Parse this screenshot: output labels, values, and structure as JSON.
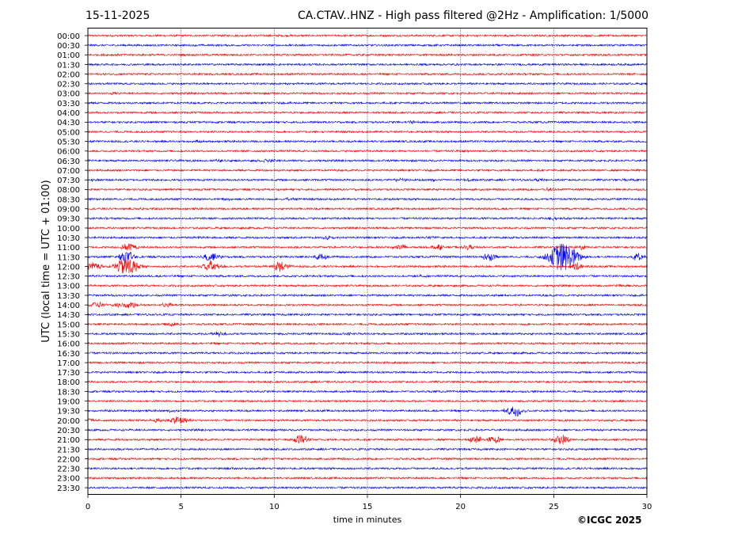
{
  "header": {
    "date": "15-11-2025",
    "title": "CA.CTAV..HNZ - High pass filtered @2Hz - Amplification: 1/5000"
  },
  "footer": {
    "credit": "©ICGC 2025"
  },
  "colors": {
    "even_trace": "#ff0000",
    "odd_trace": "#0000ff",
    "gridline": "#00008b",
    "frame": "#000000"
  },
  "chart_data": {
    "type": "line",
    "chart_kind": "helicorder",
    "title": "CA.CTAV..HNZ - High pass filtered @2Hz - Amplification: 1/5000",
    "date": "15-11-2025",
    "xlabel": "time in minutes",
    "ylabel": "UTC (local time = UTC + 01:00)",
    "xlim": [
      0,
      30
    ],
    "x_ticks": [
      0,
      5,
      10,
      15,
      20,
      25,
      30
    ],
    "vertical_gridlines_at": [
      5,
      10,
      15,
      20,
      25
    ],
    "row_labels": [
      "00:00",
      "00:30",
      "01:00",
      "01:30",
      "02:00",
      "02:30",
      "03:00",
      "03:30",
      "04:00",
      "04:30",
      "05:00",
      "05:30",
      "06:00",
      "06:30",
      "07:00",
      "07:30",
      "08:00",
      "08:30",
      "09:00",
      "09:30",
      "10:00",
      "10:30",
      "11:00",
      "11:30",
      "12:00",
      "12:30",
      "13:00",
      "13:30",
      "14:00",
      "14:30",
      "15:00",
      "15:30",
      "16:00",
      "16:30",
      "17:00",
      "17:30",
      "18:00",
      "18:30",
      "19:00",
      "19:30",
      "20:00",
      "20:30",
      "21:00",
      "21:30",
      "22:00",
      "22:30",
      "23:00",
      "23:30"
    ],
    "row_colors": [
      "#ff0000",
      "#0000ff"
    ],
    "events": [
      {
        "row": "02:30",
        "minute": 8.0,
        "amplitude": 0.1
      },
      {
        "row": "03:00",
        "minute": 1.3,
        "amplitude": 0.15
      },
      {
        "row": "04:30",
        "minute": 17.5,
        "amplitude": 0.25
      },
      {
        "row": "05:30",
        "minute": 5.9,
        "amplitude": 0.15
      },
      {
        "row": "06:00",
        "minute": 20.3,
        "amplitude": 0.2
      },
      {
        "row": "06:30",
        "minute": 7.0,
        "amplitude": 0.2
      },
      {
        "row": "06:30",
        "minute": 9.6,
        "amplitude": 0.3
      },
      {
        "row": "07:30",
        "minute": 0.3,
        "amplitude": 0.15
      },
      {
        "row": "07:30",
        "minute": 16.7,
        "amplitude": 0.3
      },
      {
        "row": "07:30",
        "minute": 18.5,
        "amplitude": 0.25
      },
      {
        "row": "07:30",
        "minute": 20.4,
        "amplitude": 0.2
      },
      {
        "row": "07:30",
        "minute": 24.3,
        "amplitude": 0.2
      },
      {
        "row": "07:30",
        "minute": 29.0,
        "amplitude": 0.2
      },
      {
        "row": "08:00",
        "minute": 24.8,
        "amplitude": 0.3
      },
      {
        "row": "08:30",
        "minute": 7.5,
        "amplitude": 0.2
      },
      {
        "row": "08:30",
        "minute": 10.9,
        "amplitude": 0.3
      },
      {
        "row": "09:00",
        "minute": 2.9,
        "amplitude": 0.15
      },
      {
        "row": "09:30",
        "minute": 25.0,
        "amplitude": 0.25
      },
      {
        "row": "10:30",
        "minute": 6.0,
        "amplitude": 0.25
      },
      {
        "row": "10:30",
        "minute": 12.9,
        "amplitude": 0.3
      },
      {
        "row": "10:30",
        "minute": 18.4,
        "amplitude": 0.25
      },
      {
        "row": "11:00",
        "minute": 16.8,
        "amplitude": 0.6
      },
      {
        "row": "11:00",
        "minute": 18.8,
        "amplitude": 0.5
      },
      {
        "row": "11:00",
        "minute": 20.4,
        "amplitude": 0.4
      },
      {
        "row": "11:00",
        "minute": 2.2,
        "amplitude": 0.8
      },
      {
        "row": "11:00",
        "minute": 26.5,
        "amplitude": 0.4
      },
      {
        "row": "11:30",
        "minute": 2.1,
        "amplitude": 1.0
      },
      {
        "row": "11:30",
        "minute": 6.6,
        "amplitude": 0.9
      },
      {
        "row": "11:30",
        "minute": 12.5,
        "amplitude": 0.7
      },
      {
        "row": "11:30",
        "minute": 21.5,
        "amplitude": 0.8
      },
      {
        "row": "11:30",
        "minute": 25.5,
        "amplitude": 3.0
      },
      {
        "row": "11:30",
        "minute": 29.5,
        "amplitude": 0.7
      },
      {
        "row": "12:00",
        "minute": 0.3,
        "amplitude": 0.8
      },
      {
        "row": "12:00",
        "minute": 2.1,
        "amplitude": 2.0
      },
      {
        "row": "12:00",
        "minute": 6.6,
        "amplitude": 1.2
      },
      {
        "row": "12:00",
        "minute": 10.3,
        "amplitude": 1.0
      },
      {
        "row": "12:00",
        "minute": 26.2,
        "amplitude": 0.7
      },
      {
        "row": "12:30",
        "minute": 18.0,
        "amplitude": 0.25
      },
      {
        "row": "13:00",
        "minute": 28.5,
        "amplitude": 0.2
      },
      {
        "row": "14:00",
        "minute": 0.5,
        "amplitude": 0.7
      },
      {
        "row": "14:00",
        "minute": 1.7,
        "amplitude": 0.6
      },
      {
        "row": "14:00",
        "minute": 2.3,
        "amplitude": 0.6
      },
      {
        "row": "14:00",
        "minute": 4.3,
        "amplitude": 0.45
      },
      {
        "row": "15:00",
        "minute": 4.5,
        "amplitude": 0.3
      },
      {
        "row": "15:30",
        "minute": 7.1,
        "amplitude": 0.5
      },
      {
        "row": "15:30",
        "minute": 14.0,
        "amplitude": 0.2
      },
      {
        "row": "19:30",
        "minute": 4.5,
        "amplitude": 0.2
      },
      {
        "row": "19:30",
        "minute": 22.9,
        "amplitude": 1.2
      },
      {
        "row": "20:00",
        "minute": 0.0,
        "amplitude": 0.4
      },
      {
        "row": "20:00",
        "minute": 3.8,
        "amplitude": 0.4
      },
      {
        "row": "20:00",
        "minute": 4.9,
        "amplitude": 1.0
      },
      {
        "row": "21:00",
        "minute": 11.4,
        "amplitude": 1.0
      },
      {
        "row": "21:00",
        "minute": 20.8,
        "amplitude": 0.7
      },
      {
        "row": "21:00",
        "minute": 21.8,
        "amplitude": 0.7
      },
      {
        "row": "21:00",
        "minute": 25.4,
        "amplitude": 1.0
      },
      {
        "row": "22:00",
        "minute": 9.6,
        "amplitude": 0.15
      }
    ],
    "grid": true
  }
}
